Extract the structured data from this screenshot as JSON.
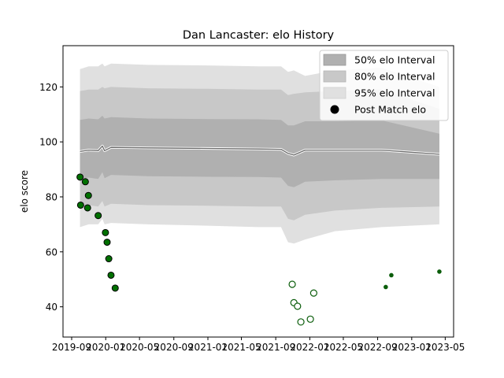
{
  "chart_data": {
    "type": "area",
    "title": "Dan Lancaster: elo History",
    "ylabel": "elo score",
    "xlabel": "",
    "xlim": [
      "2019-08-01",
      "2023-05-31"
    ],
    "ylim": [
      29,
      135
    ],
    "x_ticks": [
      "2019-09",
      "2020-01",
      "2020-05",
      "2020-09",
      "2021-01",
      "2021-05",
      "2021-09",
      "2022-01",
      "2022-05",
      "2022-09",
      "2023-01",
      "2023-05"
    ],
    "y_ticks": [
      40,
      60,
      80,
      100,
      120
    ],
    "grid": false,
    "legend_placement": "top-right",
    "legend": [
      "50% elo Interval",
      "80% elo Interval",
      "95% elo Interval",
      "Post Match elo"
    ],
    "series_colors": {
      "band50": "#b0b0b0",
      "band80": "#c8c8c8",
      "band95": "#e0e0e0",
      "mean": "#6b6b6b",
      "match_fill": "#007000",
      "match_edge": "#0b5d0b"
    },
    "interval_bands": [
      {
        "date": "2019-10-01",
        "mean": 96.5,
        "p50": [
          86.5,
          108
        ],
        "p80": [
          76,
          118.5
        ],
        "p95": [
          69,
          126.5
        ]
      },
      {
        "date": "2019-11-01",
        "mean": 97,
        "p50": [
          87,
          108.5
        ],
        "p80": [
          77,
          119
        ],
        "p95": [
          70,
          127.5
        ]
      },
      {
        "date": "2019-12-05",
        "mean": 96.8,
        "p50": [
          86.5,
          108.2
        ],
        "p80": [
          76.5,
          119
        ],
        "p95": [
          70,
          127.5
        ]
      },
      {
        "date": "2019-12-20",
        "mean": 98.5,
        "p50": [
          89,
          109.5
        ],
        "p80": [
          78.5,
          120
        ],
        "p95": [
          72,
          128.5
        ]
      },
      {
        "date": "2019-12-28",
        "mean": 96.8,
        "p50": [
          86.8,
          108.5
        ],
        "p80": [
          76.5,
          119.5
        ],
        "p95": [
          70,
          127.5
        ]
      },
      {
        "date": "2020-01-20",
        "mean": 98,
        "p50": [
          88,
          109
        ],
        "p80": [
          77.5,
          120
        ],
        "p95": [
          70.5,
          128.5
        ]
      },
      {
        "date": "2020-06-01",
        "mean": 97.8,
        "p50": [
          87.5,
          108.5
        ],
        "p80": [
          77,
          119.5
        ],
        "p95": [
          70,
          128
        ]
      },
      {
        "date": "2021-01-01",
        "mean": 97.6,
        "p50": [
          87.3,
          108.3
        ],
        "p80": [
          76.8,
          119.3
        ],
        "p95": [
          69.5,
          127.8
        ]
      },
      {
        "date": "2021-07-01",
        "mean": 97.4,
        "p50": [
          87.2,
          108.2
        ],
        "p80": [
          76.5,
          119
        ],
        "p95": [
          69,
          127.5
        ]
      },
      {
        "date": "2021-09-20",
        "mean": 97.3,
        "p50": [
          87,
          108
        ],
        "p80": [
          76.5,
          119
        ],
        "p95": [
          69,
          127.5
        ]
      },
      {
        "date": "2021-10-15",
        "mean": 95.8,
        "p50": [
          84,
          106
        ],
        "p80": [
          72,
          117
        ],
        "p95": [
          63.5,
          125.5
        ]
      },
      {
        "date": "2021-11-05",
        "mean": 95.2,
        "p50": [
          83.5,
          106
        ],
        "p80": [
          71.5,
          117.5
        ],
        "p95": [
          63,
          126
        ]
      },
      {
        "date": "2021-12-15",
        "mean": 97,
        "p50": [
          85.5,
          107.5
        ],
        "p80": [
          73.5,
          118
        ],
        "p95": [
          64.5,
          124
        ]
      },
      {
        "date": "2022-04-01",
        "mean": 97,
        "p50": [
          86,
          107.5
        ],
        "p80": [
          75,
          118.5
        ],
        "p95": [
          67.5,
          126
        ]
      },
      {
        "date": "2022-09-15",
        "mean": 97,
        "p50": [
          86.5,
          107.8
        ],
        "p80": [
          76,
          119
        ],
        "p95": [
          69,
          127
        ]
      },
      {
        "date": "2023-04-10",
        "mean": 95.5,
        "p50": [
          86.5,
          103
        ],
        "p80": [
          76.5,
          112
        ],
        "p95": [
          70,
          120
        ]
      }
    ],
    "post_match_elo": [
      {
        "date": "2019-10-01",
        "elo": 87.2,
        "marker": "large-filled"
      },
      {
        "date": "2019-10-03",
        "elo": 77,
        "marker": "large-filled"
      },
      {
        "date": "2019-10-20",
        "elo": 85.5,
        "marker": "large-filled"
      },
      {
        "date": "2019-10-28",
        "elo": 76,
        "marker": "large-filled"
      },
      {
        "date": "2019-10-31",
        "elo": 80.5,
        "marker": "large-filled"
      },
      {
        "date": "2019-12-05",
        "elo": 73.2,
        "marker": "large-filled"
      },
      {
        "date": "2019-12-31",
        "elo": 67,
        "marker": "large-filled"
      },
      {
        "date": "2020-01-06",
        "elo": 63.5,
        "marker": "large-filled"
      },
      {
        "date": "2020-01-12",
        "elo": 57.5,
        "marker": "large-filled"
      },
      {
        "date": "2020-01-20",
        "elo": 51.5,
        "marker": "large-filled"
      },
      {
        "date": "2020-02-04",
        "elo": 46.8,
        "marker": "large-filled"
      },
      {
        "date": "2021-10-30",
        "elo": 48.2,
        "marker": "hollow"
      },
      {
        "date": "2021-11-05",
        "elo": 41.5,
        "marker": "hollow"
      },
      {
        "date": "2021-11-18",
        "elo": 40.2,
        "marker": "hollow"
      },
      {
        "date": "2021-11-30",
        "elo": 34.5,
        "marker": "hollow"
      },
      {
        "date": "2022-01-03",
        "elo": 35.5,
        "marker": "hollow"
      },
      {
        "date": "2022-01-15",
        "elo": 45,
        "marker": "hollow"
      },
      {
        "date": "2022-09-30",
        "elo": 47.2,
        "marker": "small-filled"
      },
      {
        "date": "2022-10-20",
        "elo": 51.5,
        "marker": "small-filled"
      },
      {
        "date": "2023-04-10",
        "elo": 52.8,
        "marker": "small-filled"
      }
    ]
  }
}
